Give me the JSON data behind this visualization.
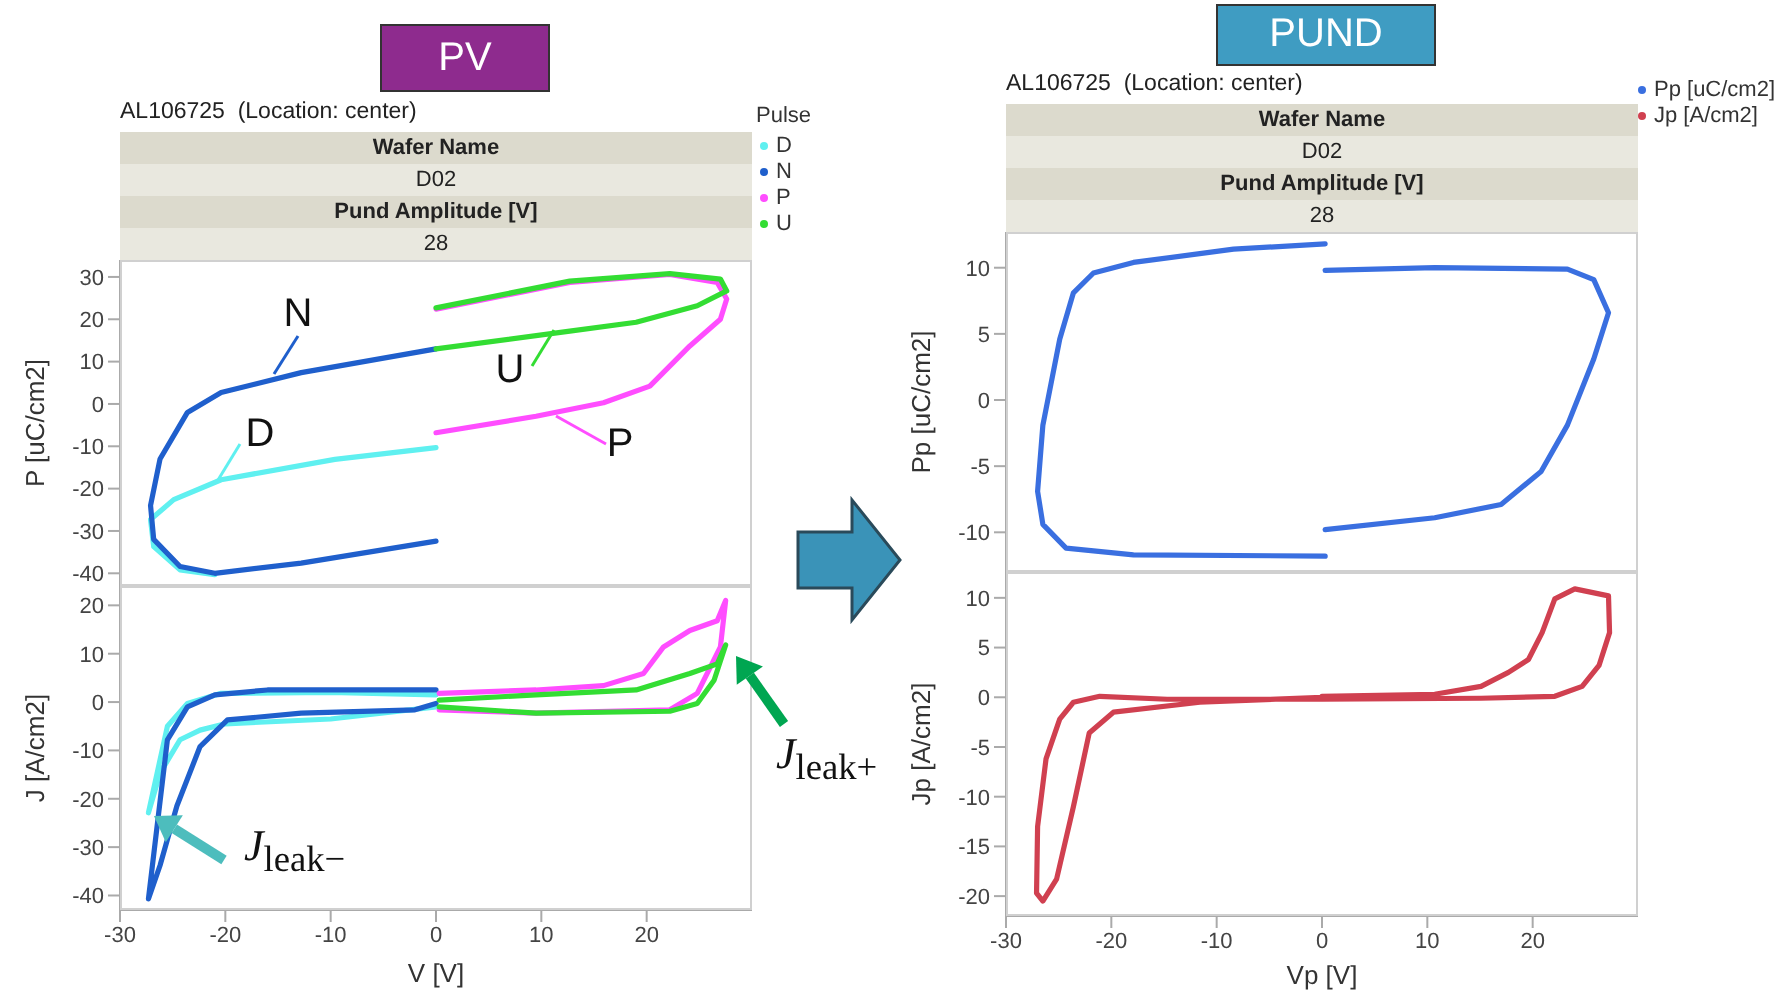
{
  "chart_data": [
    {
      "type": "line",
      "title": "PV",
      "subtitle": "AL106725  (Location: center)",
      "ylabel": "P [uC/cm2]",
      "legend_title": "Pulse",
      "legend": "top right",
      "tick_labels": "y",
      "marker": "none",
      "line_style": "solid",
      "xlim": [
        -30,
        30
      ],
      "xticks": [
        -30,
        -20,
        -10,
        0,
        10,
        20
      ],
      "ylim": [
        -43,
        34
      ],
      "yticks": [
        -40,
        -30,
        -20,
        -10,
        0,
        10,
        20,
        30
      ],
      "annotations": [
        "Wafer Name",
        "D02",
        "Pund Amplitude [V]",
        "28",
        "N",
        "D",
        "U",
        "P"
      ],
      "series": [
        {
          "name": "D",
          "color": "#5ff0f0",
          "x": [
            0,
            -9.6,
            -20.4,
            -24.9,
            -27.1,
            -26.8,
            -24.3,
            -21
          ],
          "values": [
            -10.3,
            -13.1,
            -17.9,
            -22.6,
            -27.3,
            -33.7,
            -39.2,
            -40.3
          ]
        },
        {
          "name": "N",
          "color": "#1f5fcc",
          "x": [
            0,
            -12.8,
            -20.4,
            -23.6,
            -26.2,
            -27.1,
            -26.8,
            -24.3,
            -21,
            -12.8,
            0
          ],
          "values": [
            13,
            7.4,
            2.7,
            -2,
            -13,
            -24,
            -32,
            -38.4,
            -40,
            -37.6,
            -32.4
          ]
        },
        {
          "name": "P",
          "color": "#ff4dff",
          "x": [
            0,
            9.5,
            15.9,
            20.3,
            24.1,
            27,
            27.6,
            26.7,
            22.2,
            12.7,
            0
          ],
          "values": [
            -6.8,
            -2.9,
            0.3,
            4.2,
            13.7,
            20,
            24.8,
            28.7,
            30.6,
            28.7,
            22.4
          ]
        },
        {
          "name": "U",
          "color": "#33dd33",
          "x": [
            0,
            12.7,
            19,
            24.8,
            27.6,
            27,
            22.2,
            12.7,
            0
          ],
          "values": [
            13,
            17.2,
            19.3,
            23.2,
            26.7,
            29.5,
            30.8,
            29,
            22.7
          ]
        }
      ]
    },
    {
      "type": "line",
      "ylabel": "J [A/cm2]",
      "xlabel": "V [V]",
      "legend": false,
      "marker": "none",
      "line_style": "solid",
      "xlim": [
        -30,
        30
      ],
      "xticks": [
        -30,
        -20,
        -10,
        0,
        10,
        20
      ],
      "ylim": [
        -43,
        24
      ],
      "yticks": [
        -40,
        -30,
        -20,
        -10,
        0,
        10,
        20
      ],
      "annotations": [
        "J$_{leak−}$",
        "J$_{leak+}$"
      ],
      "series": [
        {
          "color": "#5ff0f0",
          "x": [
            0,
            -10,
            -20.4,
            -23.6,
            -25.5,
            -27.3,
            -26.2,
            -24.3,
            -22.4,
            -20,
            -10,
            0
          ],
          "values": [
            1.5,
            2,
            1.8,
            -0.3,
            -5,
            -22.9,
            -14.7,
            -7.8,
            -5.8,
            -4.5,
            -3.5,
            -1
          ]
        },
        {
          "color": "#1f5fcc",
          "x": [
            0,
            -16,
            -21,
            -23.6,
            -25.5,
            -27.3,
            -26.2,
            -24.6,
            -22.4,
            -19.8,
            -12.8,
            -2,
            0
          ],
          "values": [
            2.5,
            2.5,
            1.5,
            -1,
            -7.8,
            -40.7,
            -33.8,
            -21.5,
            -9.2,
            -3.7,
            -2.3,
            -1.6,
            -0.3
          ]
        },
        {
          "color": "#ff4dff",
          "x": [
            0.3,
            9.5,
            15.9,
            19.7,
            21.6,
            24.1,
            26.7,
            27.5,
            27,
            24.8,
            22.2,
            9.5,
            0.3
          ],
          "values": [
            1.8,
            2.5,
            3.4,
            5.9,
            11.4,
            14.8,
            16.8,
            21,
            11.4,
            1.8,
            -1.6,
            -2.3,
            -1.6
          ]
        },
        {
          "color": "#33dd33",
          "x": [
            0.3,
            9.5,
            19,
            24.1,
            26.7,
            27.5,
            26.4,
            24.8,
            22.2,
            9.5,
            0.3
          ],
          "values": [
            0.4,
            1.5,
            2.5,
            5.9,
            7.9,
            11.8,
            4.5,
            -0.3,
            -1.9,
            -2.3,
            -1
          ]
        }
      ]
    },
    {
      "type": "line",
      "title": "PUND",
      "subtitle": "AL106725  (Location: center)",
      "ylabel": "Pp [uC/cm2]",
      "legend": "top right",
      "tick_labels": "y",
      "marker": "none",
      "line_style": "solid",
      "xlim": [
        -30,
        30
      ],
      "xticks": [
        -30,
        -20,
        -10,
        0,
        10,
        20
      ],
      "ylim": [
        -13,
        12.7
      ],
      "yticks": [
        -10,
        -5,
        0,
        5,
        10
      ],
      "annotations": [
        "Wafer Name",
        "D02",
        "Pund Amplitude [V]",
        "28"
      ],
      "series": [
        {
          "name": "Pp [uC/cm2]",
          "color": "#3a6fe0",
          "x": [
            0.3,
            -8.4,
            -17.9,
            -21.7,
            -23.6,
            -24.9,
            -26.5,
            -27,
            -26.5,
            -24.3,
            -17.9,
            0.3,
            null,
            0.3,
            10.7,
            23.3,
            25.8,
            27.2,
            25.8,
            23.3,
            20.8,
            17,
            10.7,
            0.3
          ],
          "values": [
            11.8,
            11.4,
            10.4,
            9.6,
            8.1,
            4.6,
            -1.9,
            -6.9,
            -9.4,
            -11.2,
            -11.7,
            -11.8,
            null,
            9.8,
            10,
            9.9,
            9.1,
            6.6,
            3.1,
            -1.9,
            -5.4,
            -7.9,
            -8.9,
            -9.8
          ]
        }
      ]
    },
    {
      "type": "line",
      "ylabel": "Jp [A/cm2]",
      "xlabel": "Vp [V]",
      "legend": "top right",
      "marker": "none",
      "line_style": "solid",
      "xlim": [
        -30,
        30
      ],
      "xticks": [
        -30,
        -20,
        -10,
        0,
        10,
        20
      ],
      "ylim": [
        -22,
        12.6
      ],
      "yticks": [
        -20,
        -15,
        -10,
        -5,
        0,
        5,
        10
      ],
      "series": [
        {
          "name": "Jp [A/cm2]",
          "color": "#d04050",
          "x": [
            0,
            10.7,
            15.1,
            17.7,
            19.6,
            20.9,
            22.1,
            24,
            27.2,
            27.3,
            26.3,
            24.7,
            22.1,
            15.1,
            0,
            -14.7,
            -21.1,
            -23.6,
            -24.9,
            -26.2,
            -27,
            -27.1,
            -26.5,
            -25.2,
            -23.6,
            -22.1,
            -19.8,
            -11.6,
            0
          ],
          "values": [
            0.1,
            0.3,
            1.1,
            2.5,
            3.8,
            6.5,
            9.9,
            10.9,
            10.2,
            6.5,
            3.2,
            1.1,
            0.1,
            -0.1,
            -0.2,
            -0.2,
            0.1,
            -0.5,
            -2.2,
            -6.2,
            -13,
            -19.7,
            -20.5,
            -18.3,
            -11,
            -3.6,
            -1.5,
            -0.5,
            0
          ]
        }
      ]
    }
  ]
}
